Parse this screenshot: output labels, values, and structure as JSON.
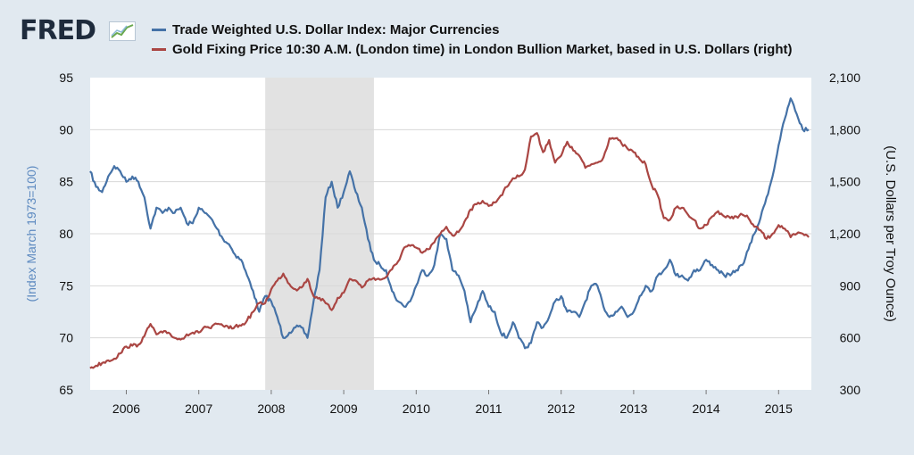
{
  "header": {
    "logo": "FRED"
  },
  "colors": {
    "background": "#e1e9f0",
    "plot_background": "#ffffff",
    "recession_shade": "#e2e2e2",
    "usd_series": "#4572a7",
    "gold_series": "#aa4643"
  },
  "chart_data": {
    "type": "line",
    "legend_placement": "top",
    "grid": true,
    "x_range": [
      "2005-07",
      "2015-07"
    ],
    "x_ticks": [
      "2006",
      "2007",
      "2008",
      "2009",
      "2010",
      "2011",
      "2012",
      "2013",
      "2014",
      "2015"
    ],
    "y_left": {
      "label": "(Index March 1973=100)",
      "range": [
        65,
        95
      ],
      "ticks": [
        "65",
        "70",
        "75",
        "80",
        "85",
        "90",
        "95"
      ]
    },
    "y_right": {
      "label": "(U.S. Dollars per Troy Ounce)",
      "range": [
        300,
        2100
      ],
      "ticks": [
        "300",
        "600",
        "900",
        "1,200",
        "1,500",
        "1,800",
        "2,100"
      ]
    },
    "shaded_periods": [
      {
        "start": "2007-12",
        "end": "2009-06"
      }
    ],
    "series": [
      {
        "name": "Trade Weighted U.S. Dollar Index: Major Currencies",
        "axis": "left",
        "color": "#4572a7",
        "x": [
          "2005-07",
          "2005-08",
          "2005-09",
          "2005-10",
          "2005-11",
          "2005-12",
          "2006-01",
          "2006-02",
          "2006-03",
          "2006-04",
          "2006-05",
          "2006-06",
          "2006-07",
          "2006-08",
          "2006-09",
          "2006-10",
          "2006-11",
          "2006-12",
          "2007-01",
          "2007-02",
          "2007-03",
          "2007-04",
          "2007-05",
          "2007-06",
          "2007-07",
          "2007-08",
          "2007-09",
          "2007-10",
          "2007-11",
          "2007-12",
          "2008-01",
          "2008-02",
          "2008-03",
          "2008-04",
          "2008-05",
          "2008-06",
          "2008-07",
          "2008-08",
          "2008-09",
          "2008-10",
          "2008-11",
          "2008-12",
          "2009-01",
          "2009-02",
          "2009-03",
          "2009-04",
          "2009-05",
          "2009-06",
          "2009-07",
          "2009-08",
          "2009-09",
          "2009-10",
          "2009-11",
          "2009-12",
          "2010-01",
          "2010-02",
          "2010-03",
          "2010-04",
          "2010-05",
          "2010-06",
          "2010-07",
          "2010-08",
          "2010-09",
          "2010-10",
          "2010-11",
          "2010-12",
          "2011-01",
          "2011-02",
          "2011-03",
          "2011-04",
          "2011-05",
          "2011-06",
          "2011-07",
          "2011-08",
          "2011-09",
          "2011-10",
          "2011-11",
          "2011-12",
          "2012-01",
          "2012-02",
          "2012-03",
          "2012-04",
          "2012-05",
          "2012-06",
          "2012-07",
          "2012-08",
          "2012-09",
          "2012-10",
          "2012-11",
          "2012-12",
          "2013-01",
          "2013-02",
          "2013-03",
          "2013-04",
          "2013-05",
          "2013-06",
          "2013-07",
          "2013-08",
          "2013-09",
          "2013-10",
          "2013-11",
          "2013-12",
          "2014-01",
          "2014-02",
          "2014-03",
          "2014-04",
          "2014-05",
          "2014-06",
          "2014-07",
          "2014-08",
          "2014-09",
          "2014-10",
          "2014-11",
          "2014-12",
          "2015-01",
          "2015-02",
          "2015-03",
          "2015-04",
          "2015-05",
          "2015-06"
        ],
        "values": [
          86.0,
          84.5,
          84.0,
          85.5,
          86.5,
          86.0,
          85.0,
          85.5,
          85.0,
          83.5,
          80.5,
          82.5,
          82.0,
          82.5,
          82.0,
          82.5,
          81.0,
          81.0,
          82.5,
          82.0,
          81.5,
          80.5,
          79.5,
          79.0,
          78.0,
          77.5,
          76.0,
          74.5,
          72.5,
          74.0,
          73.5,
          72.0,
          70.0,
          70.5,
          71.0,
          71.0,
          70.0,
          73.5,
          76.5,
          83.5,
          85.0,
          82.5,
          84.0,
          86.0,
          84.0,
          82.5,
          79.5,
          77.5,
          77.0,
          76.5,
          74.5,
          73.5,
          73.0,
          73.5,
          75.0,
          76.5,
          76.0,
          77.0,
          80.0,
          79.5,
          76.5,
          76.0,
          74.5,
          71.5,
          73.0,
          74.5,
          73.0,
          72.5,
          70.5,
          70.0,
          71.5,
          70.0,
          69.0,
          69.5,
          71.5,
          71.0,
          72.0,
          73.5,
          74.0,
          72.5,
          72.5,
          72.0,
          73.5,
          75.0,
          75.0,
          73.0,
          72.0,
          72.5,
          73.0,
          72.0,
          72.5,
          74.0,
          75.0,
          74.5,
          76.0,
          76.5,
          77.5,
          76.0,
          76.0,
          75.5,
          76.5,
          76.5,
          77.5,
          77.0,
          76.5,
          76.0,
          76.0,
          76.5,
          77.0,
          78.5,
          80.0,
          81.5,
          83.5,
          85.5,
          88.5,
          91.0,
          93.0,
          91.5,
          90.0,
          90.0
        ]
      },
      {
        "name": "Gold Fixing Price 10:30 A.M. (London time) in London Bullion Market, based in U.S. Dollars (right)",
        "axis": "right",
        "color": "#aa4643",
        "x": [
          "2005-07",
          "2005-08",
          "2005-09",
          "2005-10",
          "2005-11",
          "2005-12",
          "2006-01",
          "2006-02",
          "2006-03",
          "2006-04",
          "2006-05",
          "2006-06",
          "2006-07",
          "2006-08",
          "2006-09",
          "2006-10",
          "2006-11",
          "2006-12",
          "2007-01",
          "2007-02",
          "2007-03",
          "2007-04",
          "2007-05",
          "2007-06",
          "2007-07",
          "2007-08",
          "2007-09",
          "2007-10",
          "2007-11",
          "2007-12",
          "2008-01",
          "2008-02",
          "2008-03",
          "2008-04",
          "2008-05",
          "2008-06",
          "2008-07",
          "2008-08",
          "2008-09",
          "2008-10",
          "2008-11",
          "2008-12",
          "2009-01",
          "2009-02",
          "2009-03",
          "2009-04",
          "2009-05",
          "2009-06",
          "2009-07",
          "2009-08",
          "2009-09",
          "2009-10",
          "2009-11",
          "2009-12",
          "2010-01",
          "2010-02",
          "2010-03",
          "2010-04",
          "2010-05",
          "2010-06",
          "2010-07",
          "2010-08",
          "2010-09",
          "2010-10",
          "2010-11",
          "2010-12",
          "2011-01",
          "2011-02",
          "2011-03",
          "2011-04",
          "2011-05",
          "2011-06",
          "2011-07",
          "2011-08",
          "2011-09",
          "2011-10",
          "2011-11",
          "2011-12",
          "2012-01",
          "2012-02",
          "2012-03",
          "2012-04",
          "2012-05",
          "2012-06",
          "2012-07",
          "2012-08",
          "2012-09",
          "2012-10",
          "2012-11",
          "2012-12",
          "2013-01",
          "2013-02",
          "2013-03",
          "2013-04",
          "2013-05",
          "2013-06",
          "2013-07",
          "2013-08",
          "2013-09",
          "2013-10",
          "2013-11",
          "2013-12",
          "2014-01",
          "2014-02",
          "2014-03",
          "2014-04",
          "2014-05",
          "2014-06",
          "2014-07",
          "2014-08",
          "2014-09",
          "2014-10",
          "2014-11",
          "2014-12",
          "2015-01",
          "2015-02",
          "2015-03",
          "2015-04",
          "2015-05",
          "2015-06"
        ],
        "values": [
          425,
          440,
          455,
          470,
          480,
          510,
          550,
          555,
          560,
          610,
          680,
          620,
          630,
          630,
          600,
          590,
          620,
          630,
          630,
          665,
          655,
          680,
          670,
          655,
          665,
          670,
          700,
          750,
          800,
          800,
          880,
          930,
          970,
          910,
          880,
          890,
          940,
          840,
          830,
          800,
          760,
          830,
          860,
          940,
          930,
          890,
          930,
          945,
          935,
          950,
          995,
          1040,
          1120,
          1130,
          1120,
          1090,
          1110,
          1150,
          1200,
          1240,
          1190,
          1210,
          1270,
          1340,
          1370,
          1390,
          1360,
          1380,
          1420,
          1470,
          1520,
          1530,
          1570,
          1760,
          1780,
          1670,
          1740,
          1610,
          1650,
          1730,
          1680,
          1650,
          1580,
          1600,
          1610,
          1640,
          1750,
          1750,
          1720,
          1690,
          1670,
          1630,
          1600,
          1480,
          1420,
          1290,
          1280,
          1350,
          1350,
          1310,
          1280,
          1230,
          1250,
          1300,
          1330,
          1300,
          1290,
          1300,
          1310,
          1290,
          1240,
          1220,
          1170,
          1200,
          1250,
          1230,
          1180,
          1200,
          1200,
          1180
        ]
      }
    ]
  }
}
